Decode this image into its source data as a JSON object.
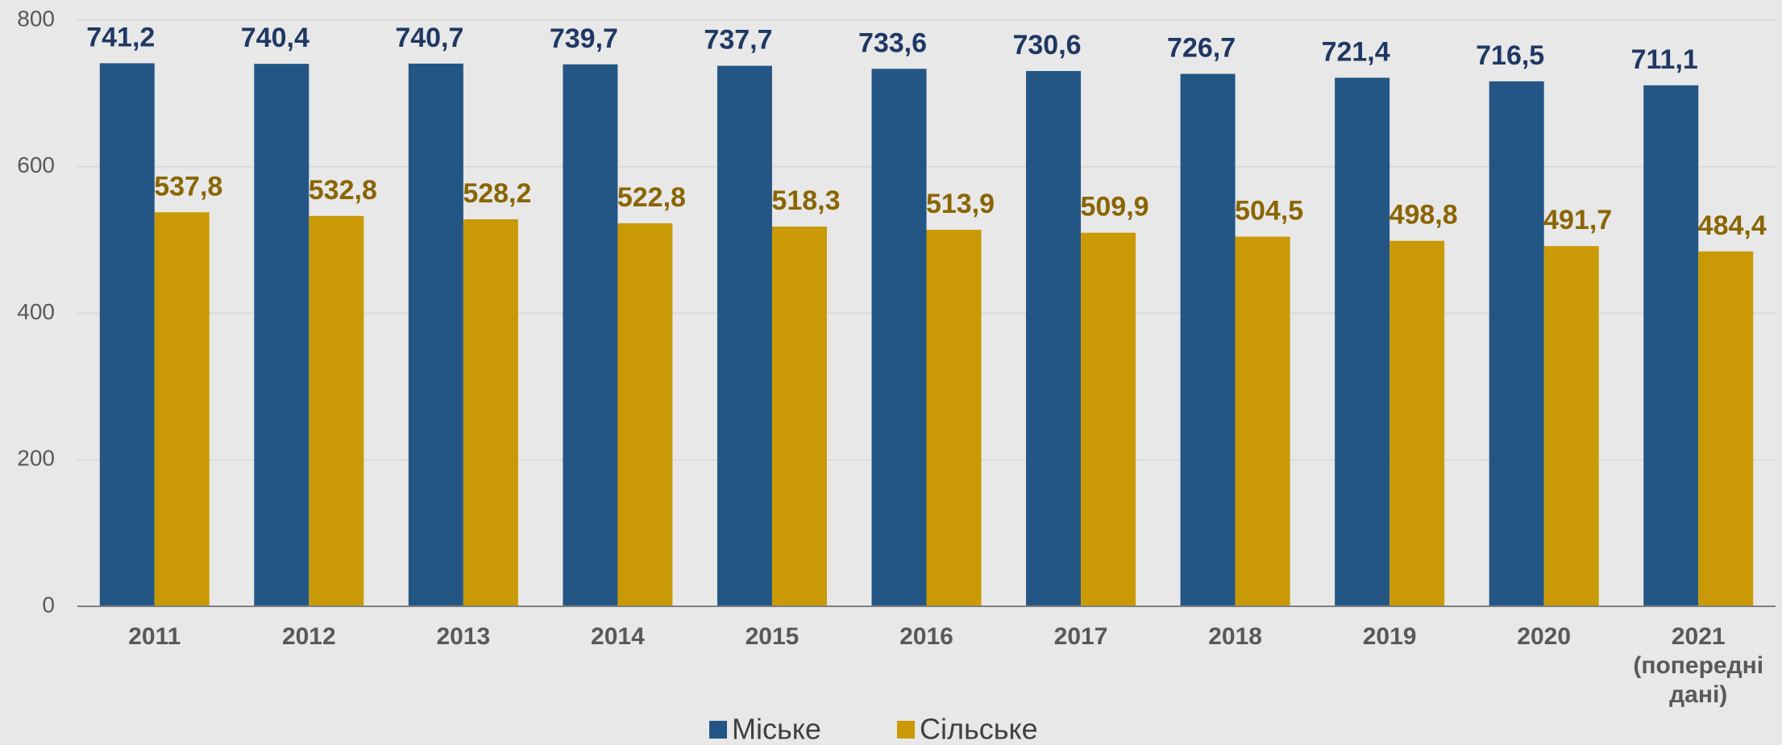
{
  "chart_data": {
    "type": "bar",
    "categories": [
      "2011",
      "2012",
      "2013",
      "2014",
      "2015",
      "2016",
      "2017",
      "2018",
      "2019",
      "2020",
      "2021 (попередні дані)"
    ],
    "series": [
      {
        "name": "Міське",
        "color": "#245685",
        "label_color": "#1f3864",
        "values": [
          741.2,
          740.4,
          740.7,
          739.7,
          737.7,
          733.6,
          730.6,
          726.7,
          721.4,
          716.5,
          711.1
        ],
        "value_labels": [
          "741,2",
          "740,4",
          "740,7",
          "739,7",
          "737,7",
          "733,6",
          "730,6",
          "726,7",
          "721,4",
          "716,5",
          "711,1"
        ]
      },
      {
        "name": "Сільське",
        "color": "#c99a06",
        "label_color": "#8a6500",
        "values": [
          537.8,
          532.8,
          528.2,
          522.8,
          518.3,
          513.9,
          509.9,
          504.5,
          498.8,
          491.7,
          484.4
        ],
        "value_labels": [
          "537,8",
          "532,8",
          "528,2",
          "522,8",
          "518,3",
          "513,9",
          "509,9",
          "504,5",
          "498,8",
          "491,7",
          "484,4"
        ]
      }
    ],
    "ylim": [
      0,
      800
    ],
    "yticks": [
      0,
      200,
      400,
      600,
      800
    ],
    "grid": true,
    "legend": "bottom"
  }
}
